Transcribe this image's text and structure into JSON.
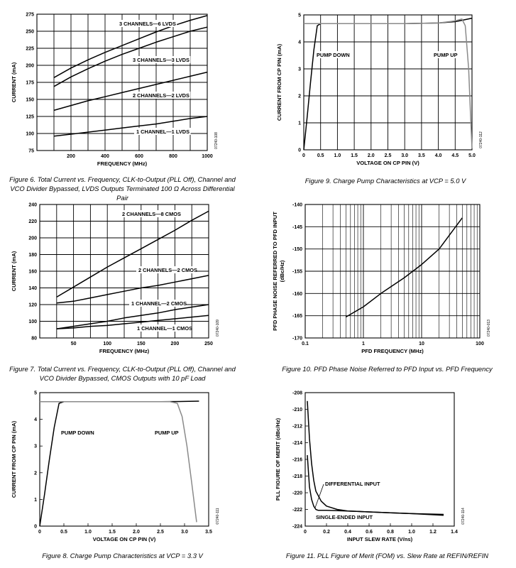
{
  "chart_data": [
    {
      "id": "fig6",
      "type": "line",
      "title": "Figure 6. Total Current vs. Frequency, CLK-to-Output (PLL Off), Channel and VCO Divider Bypassed, LVDS Outputs Terminated 100 Ω Across Differential Pair",
      "xlabel": "FREQUENCY (MHz)",
      "ylabel": "CURRENT (mA)",
      "xlim": [
        0,
        1000
      ],
      "ylim": [
        75,
        275
      ],
      "xticks": [
        200,
        400,
        600,
        800,
        1000
      ],
      "yticks": [
        75,
        100,
        125,
        150,
        175,
        200,
        225,
        250,
        275
      ],
      "grid": true,
      "side_label": "07240-108",
      "series": [
        {
          "name": "3 CHANNELS—6 LVDS",
          "x": [
            100,
            200,
            300,
            400,
            500,
            600,
            700,
            800,
            900,
            1000
          ],
          "y": [
            182,
            196,
            208,
            219,
            229,
            239,
            249,
            258,
            266,
            273
          ]
        },
        {
          "name": "3 CHANNELS—3 LVDS",
          "x": [
            100,
            200,
            300,
            400,
            500,
            600,
            700,
            800,
            900,
            1000
          ],
          "y": [
            169,
            183,
            195,
            206,
            216,
            225,
            234,
            242,
            250,
            256
          ]
        },
        {
          "name": "2 CHANNELS—2 LVDS",
          "x": [
            100,
            200,
            300,
            400,
            500,
            600,
            700,
            800,
            900,
            1000
          ],
          "y": [
            134,
            141,
            148,
            154,
            160,
            166,
            172,
            178,
            184,
            190
          ]
        },
        {
          "name": "1 CHANNEL—1 LVDS",
          "x": [
            100,
            200,
            300,
            400,
            500,
            600,
            700,
            800,
            900,
            1000
          ],
          "y": [
            96,
            99,
            102,
            105,
            108,
            111,
            114,
            118,
            122,
            125
          ]
        }
      ]
    },
    {
      "id": "fig9",
      "type": "line",
      "title": "Figure 9. Charge Pump Characteristics at VCP = 5.0 V",
      "xlabel": "VOLTAGE ON CP PIN (V)",
      "ylabel": "CURRENT FROM CP PIN (mA)",
      "xlim": [
        0,
        5.0
      ],
      "ylim": [
        0,
        5
      ],
      "xticks": [
        "0",
        "0.5",
        "1.0",
        "1.5",
        "2.0",
        "2.5",
        "3.0",
        "3.5",
        "4.0",
        "4.5",
        "5.0"
      ],
      "yticks": [
        0,
        1,
        2,
        3,
        4,
        5
      ],
      "grid": true,
      "side_label": "07240-112",
      "annotations": [
        "PUMP DOWN",
        "PUMP UP"
      ],
      "series": [
        {
          "name": "PUMP DOWN",
          "x": [
            0,
            0.1,
            0.2,
            0.3,
            0.4,
            0.5,
            1.0,
            2.0,
            3.0,
            4.0,
            4.5,
            4.7,
            5.0
          ],
          "y": [
            0,
            1.2,
            2.5,
            3.7,
            4.6,
            4.68,
            4.68,
            4.68,
            4.68,
            4.7,
            4.75,
            4.8,
            4.88
          ]
        },
        {
          "name": "PUMP UP",
          "x": [
            0,
            0.5,
            1.0,
            2.0,
            3.0,
            4.0,
            4.5,
            4.7,
            4.8,
            4.9,
            4.95,
            5.0
          ],
          "y": [
            4.68,
            4.68,
            4.68,
            4.68,
            4.68,
            4.7,
            4.78,
            4.85,
            4.6,
            3.0,
            1.5,
            0.05
          ]
        }
      ]
    },
    {
      "id": "fig7",
      "type": "line",
      "title": "Figure 7. Total Current vs. Frequency, CLK-to-Output (PLL Off), Channel and VCO Divider Bypassed, CMOS Outputs with 10 pF Load",
      "xlabel": "FREQUENCY (MHz)",
      "ylabel": "CURRENT (mA)",
      "xlim": [
        0,
        250
      ],
      "ylim": [
        80,
        240
      ],
      "xticks": [
        50,
        100,
        150,
        200,
        250
      ],
      "yticks": [
        80,
        100,
        120,
        140,
        160,
        180,
        200,
        220,
        240
      ],
      "grid": true,
      "side_label": "07240-109",
      "series": [
        {
          "name": "2 CHANNELS—8 CMOS",
          "x": [
            25,
            50,
            75,
            100,
            125,
            150,
            175,
            200,
            225,
            250
          ],
          "y": [
            129,
            141,
            153,
            165,
            176,
            187,
            198,
            209,
            221,
            232
          ]
        },
        {
          "name": "2 CHANNELS—2 CMOS",
          "x": [
            25,
            50,
            75,
            100,
            125,
            150,
            175,
            200,
            225,
            250
          ],
          "y": [
            122,
            124,
            128,
            132,
            136,
            140,
            143,
            147,
            151,
            155
          ]
        },
        {
          "name": "1 CHANNEL—2 CMOS",
          "x": [
            25,
            50,
            75,
            100,
            125,
            150,
            175,
            200,
            225,
            250
          ],
          "y": [
            91,
            94,
            97,
            100,
            104,
            107,
            110,
            114,
            117,
            120
          ]
        },
        {
          "name": "1 CHANNEL—1 CMOS",
          "x": [
            25,
            50,
            75,
            100,
            125,
            150,
            175,
            200,
            225,
            250
          ],
          "y": [
            91,
            92,
            94,
            95,
            97,
            99,
            101,
            103,
            105,
            107
          ]
        }
      ]
    },
    {
      "id": "fig10",
      "type": "line",
      "title": "Figure 10. PFD Phase Noise Referred to PFD Input vs. PFD Frequency",
      "xlabel": "PFD FREQUENCY (MHz)",
      "ylabel": "PFD PHASE NOISE REFERRED TO PFD INPUT",
      "ylabel2": "(dBc/Hz)",
      "xscale": "log",
      "xlim": [
        0.1,
        100
      ],
      "ylim": [
        -170,
        -140
      ],
      "xticks": [
        "0.1",
        "1",
        "10",
        "100"
      ],
      "yticks": [
        -170,
        -165,
        -160,
        -155,
        -150,
        -145,
        -140
      ],
      "grid": true,
      "side_label": "07240-013",
      "series": [
        {
          "name": "",
          "x": [
            0.5,
            1,
            2,
            5,
            10,
            20,
            50
          ],
          "y": [
            -165.3,
            -163,
            -160,
            -156.5,
            -153.5,
            -150,
            -143
          ]
        }
      ]
    },
    {
      "id": "fig8",
      "type": "line",
      "title": "Figure 8. Charge Pump Characteristics at VCP = 3.3 V",
      "xlabel": "VOLTAGE ON CP PIN (V)",
      "ylabel": "CURRENT FROM CP PIN (mA)",
      "xlim": [
        0,
        3.5
      ],
      "ylim": [
        0,
        5
      ],
      "xticks": [
        "0",
        "0.5",
        "1.0",
        "1.5",
        "2.0",
        "2.5",
        "3.0",
        "3.5"
      ],
      "yticks": [
        0,
        1,
        2,
        3,
        4,
        5
      ],
      "grid": false,
      "side_label": "07240-111",
      "annotations": [
        "PUMP DOWN",
        "PUMP UP"
      ],
      "series": [
        {
          "name": "PUMP DOWN",
          "x": [
            0,
            0.1,
            0.2,
            0.3,
            0.4,
            0.5,
            1.0,
            2.0,
            2.5,
            3.0,
            3.3
          ],
          "y": [
            0,
            1.2,
            2.5,
            3.7,
            4.6,
            4.66,
            4.66,
            4.66,
            4.66,
            4.67,
            4.68
          ]
        },
        {
          "name": "PUMP UP",
          "x": [
            0,
            0.5,
            1.0,
            2.0,
            2.7,
            2.85,
            2.95,
            3.05,
            3.15,
            3.25
          ],
          "y": [
            4.66,
            4.66,
            4.66,
            4.66,
            4.66,
            4.6,
            4.1,
            3.0,
            1.6,
            0.15
          ]
        }
      ]
    },
    {
      "id": "fig11",
      "type": "line",
      "title": "Figure 11. PLL Figure of Merit (FOM) vs. Slew Rate at REFIN/REFIN",
      "xlabel": "INPUT SLEW RATE (V/ns)",
      "ylabel": "PLL FIGURE OF MERIT (dBc/Hz)",
      "xlim": [
        0,
        1.4
      ],
      "ylim": [
        -224,
        -208
      ],
      "xticks": [
        "0",
        "0.2",
        "0.4",
        "0.6",
        "0.8",
        "1.0",
        "1.2",
        "1.4"
      ],
      "yticks": [
        -224,
        -222,
        -220,
        -218,
        -216,
        -214,
        -212,
        -210,
        -208
      ],
      "grid": false,
      "side_label": "07240-114",
      "series": [
        {
          "name": "DIFFERENTIAL INPUT",
          "x": [
            0.02,
            0.04,
            0.06,
            0.08,
            0.1,
            0.15,
            0.2,
            0.3,
            0.4,
            0.6,
            0.8,
            1.0,
            1.3
          ],
          "y": [
            -209,
            -213.5,
            -216.5,
            -218.5,
            -219.8,
            -221,
            -221.6,
            -222,
            -222.2,
            -222.3,
            -222.4,
            -222.5,
            -222.6
          ]
        },
        {
          "name": "SINGLE-ENDED INPUT",
          "x": [
            0.02,
            0.04,
            0.06,
            0.08,
            0.1,
            0.12,
            0.15,
            0.2,
            0.3,
            0.4,
            0.6,
            0.8,
            1.0,
            1.3
          ],
          "y": [
            -215.5,
            -219.3,
            -220.8,
            -221.6,
            -222,
            -222.1,
            -222.1,
            -222.1,
            -222.15,
            -222.2,
            -222.3,
            -222.4,
            -222.5,
            -222.7
          ]
        }
      ]
    }
  ],
  "labels": {
    "fig6": [
      "3 CHANNELS—6 LVDS",
      "3 CHANNELS—3 LVDS",
      "2 CHANNELS—2 LVDS",
      "1 CHANNEL—1 LVDS"
    ],
    "fig7": [
      "2 CHANNELS—8 CMOS",
      "2 CHANNELS—2 CMOS",
      "1 CHANNEL—2 CMOS",
      "1 CHANNEL—1 CMOS"
    ],
    "fig11": [
      "DIFFERENTIAL INPUT",
      "SINGLE-ENDED INPUT"
    ]
  },
  "colors": {
    "line": "#000000",
    "grey_line": "#8a8a8a",
    "grid": "#000000"
  }
}
